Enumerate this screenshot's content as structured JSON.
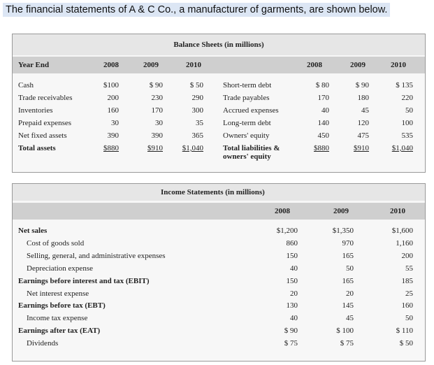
{
  "header": {
    "title": "The financial statements of A & C Co., a manufacturer of garments, are shown below."
  },
  "balance_sheet": {
    "title": "Balance Sheets (in millions)",
    "columns": [
      "Year End",
      "2008",
      "2009",
      "2010",
      "2008",
      "2009",
      "2010"
    ],
    "rows": [
      [
        "Cash",
        "$100",
        "$ 90",
        "$ 50",
        "Short-term debt",
        "$ 80",
        "$ 90",
        "$ 135"
      ],
      [
        "Trade receivables",
        "200",
        "230",
        "290",
        "Trade payables",
        "170",
        "180",
        "220"
      ],
      [
        "Inventories",
        "160",
        "170",
        "300",
        "Accrued expenses",
        "40",
        "45",
        "50"
      ],
      [
        "Prepaid expenses",
        "30",
        "30",
        "35",
        "Long-term debt",
        "140",
        "120",
        "100"
      ],
      [
        "Net fixed assets",
        "390",
        "390",
        "365",
        "Owners' equity",
        "450",
        "475",
        "535"
      ],
      [
        "Total assets",
        "$880",
        "$910",
        "$1,040",
        "Total liabilities & owners' equity",
        "$880",
        "$910",
        "$1,040"
      ]
    ]
  },
  "income_statement": {
    "title": "Income Statements (in millions)",
    "columns": [
      "2008",
      "2009",
      "2010"
    ],
    "rows": [
      [
        "Net sales",
        "$1,200",
        "$1,350",
        "$1,600"
      ],
      [
        "Cost of goods sold",
        "860",
        "970",
        "1,160"
      ],
      [
        "Selling, general, and administrative expenses",
        "150",
        "165",
        "200"
      ],
      [
        "Depreciation expense",
        "40",
        "50",
        "55"
      ],
      [
        "Earnings before interest and tax (EBIT)",
        "150",
        "165",
        "185"
      ],
      [
        "Net interest expense",
        "20",
        "20",
        "25"
      ],
      [
        "Earnings before tax (EBT)",
        "130",
        "145",
        "160"
      ],
      [
        "Income tax expense",
        "40",
        "45",
        "50"
      ],
      [
        "Earnings after tax (EAT)",
        "$ 90",
        "$ 100",
        "$ 110"
      ],
      [
        "Dividends",
        "$ 75",
        "$ 75",
        "$ 50"
      ]
    ]
  }
}
